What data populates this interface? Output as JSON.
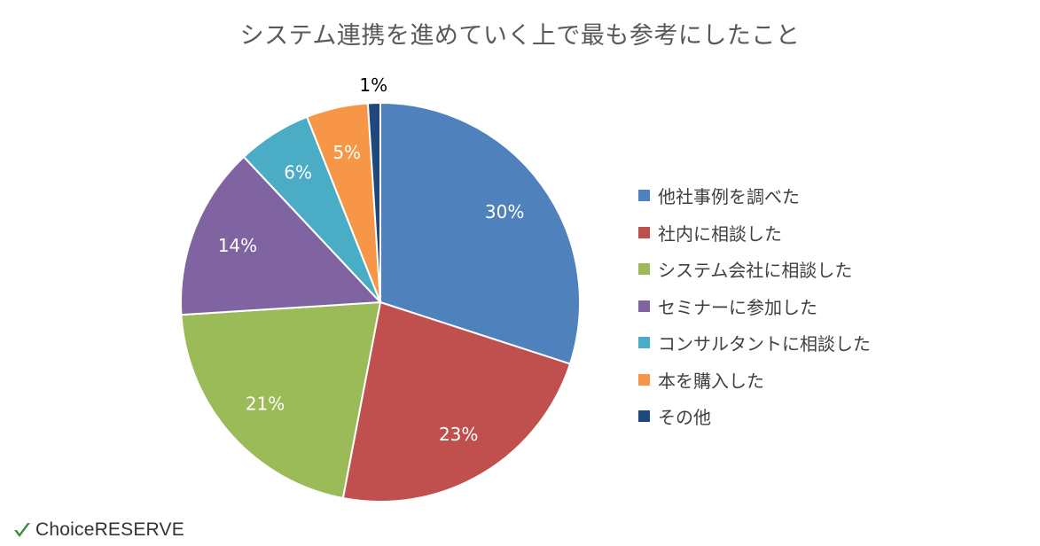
{
  "chart_data": {
    "type": "pie",
    "title": "システム連携を進めていく上で最も参考にしたこと",
    "legend_position": "right",
    "slices": [
      {
        "label": "他社事例を調べた",
        "value": 30,
        "display": "30%",
        "color": "#4F81BD"
      },
      {
        "label": "社内に相談した",
        "value": 23,
        "display": "23%",
        "color": "#C0504D"
      },
      {
        "label": "システム会社に相談した",
        "value": 21,
        "display": "21%",
        "color": "#9BBB59"
      },
      {
        "label": "セミナーに参加した",
        "value": 14,
        "display": "14%",
        "color": "#8064A2"
      },
      {
        "label": "コンサルタントに相談した",
        "value": 6,
        "display": "6%",
        "color": "#4BACC6"
      },
      {
        "label": "本を購入した",
        "value": 5,
        "display": "5%",
        "color": "#F79646"
      },
      {
        "label": "その他",
        "value": 1,
        "display": "1%",
        "color": "#1F497D"
      }
    ]
  },
  "brand": {
    "name": "ChoiceRESERVE",
    "check_color": "#3A8F3A"
  }
}
